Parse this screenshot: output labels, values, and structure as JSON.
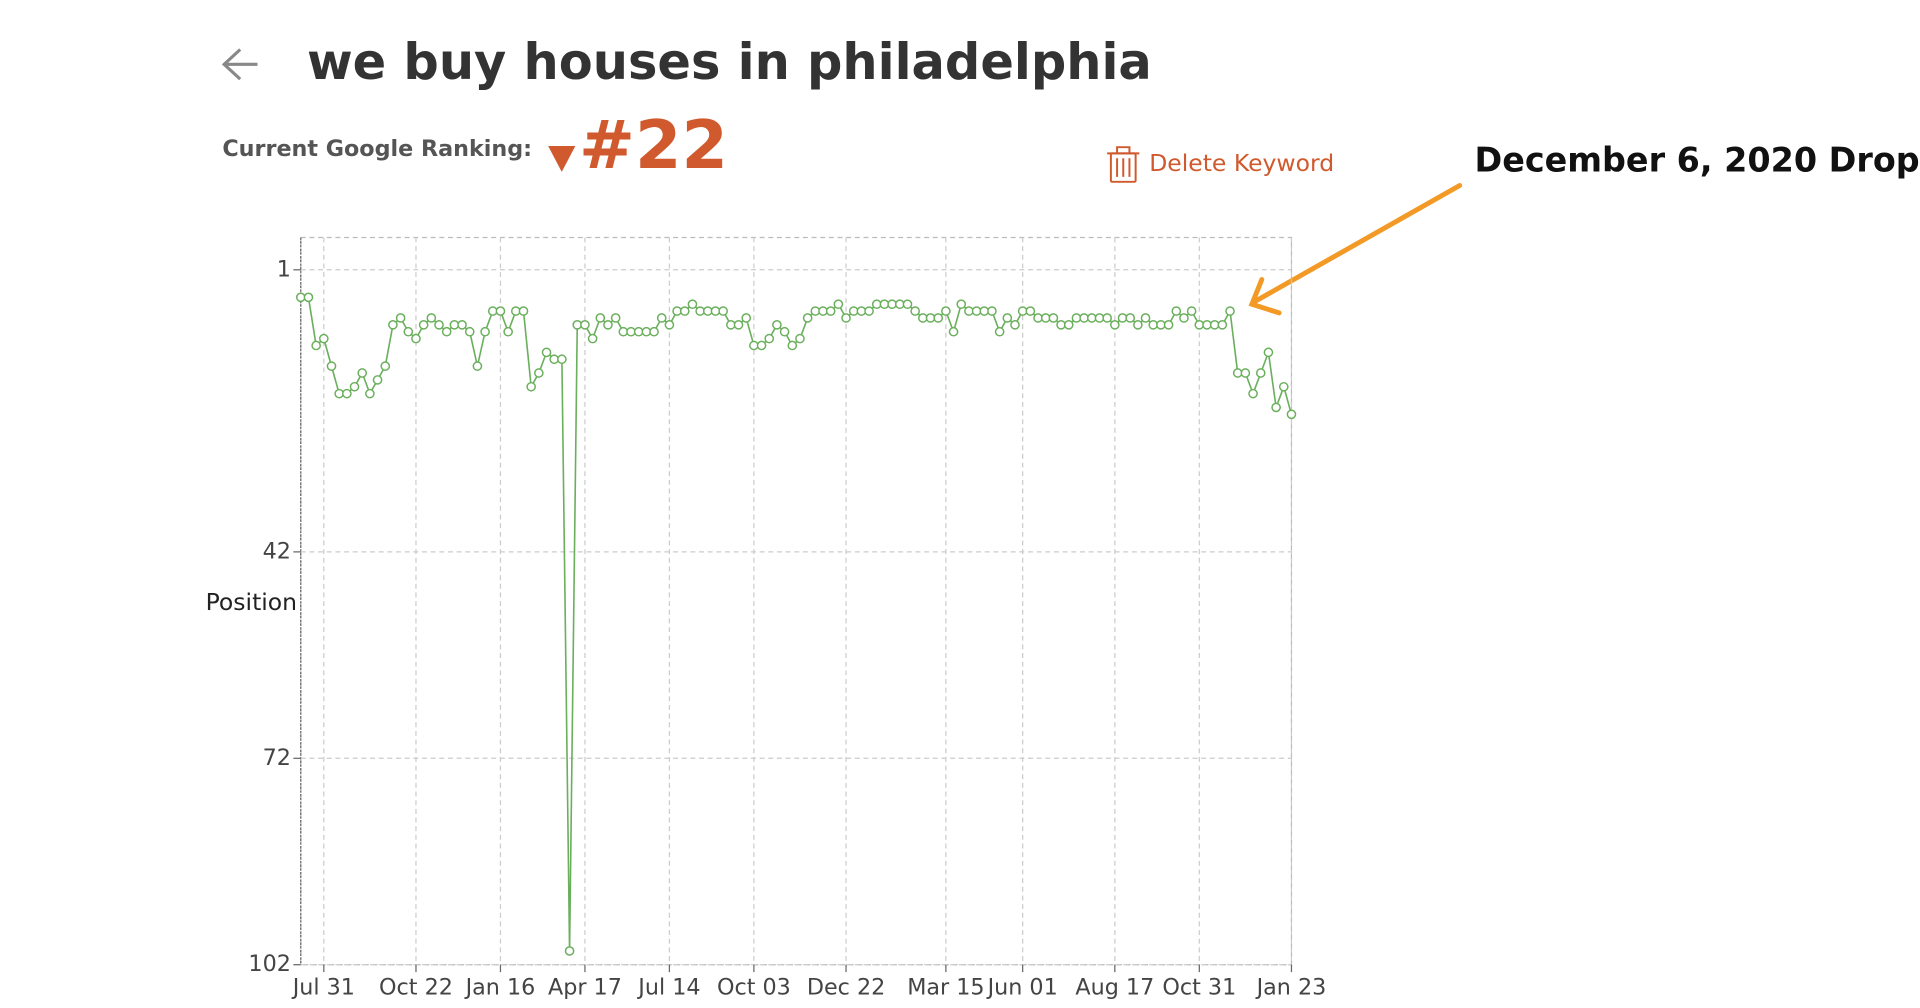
{
  "header": {
    "title": "we buy houses in philadelphia",
    "ranking_label": "Current Google Ranking:",
    "ranking_value": "#22",
    "delete_button": "Delete Keyword"
  },
  "annotation": "December 6, 2020 Drop",
  "chart_data": {
    "type": "line",
    "y_label": "Position",
    "categories": [
      null,
      null,
      null,
      "Jul 31",
      null,
      null,
      null,
      null,
      null,
      null,
      null,
      null,
      null,
      null,
      null,
      "Oct 22",
      null,
      null,
      null,
      null,
      null,
      null,
      null,
      null,
      null,
      null,
      "Jan 16",
      null,
      null,
      null,
      null,
      null,
      null,
      null,
      null,
      null,
      null,
      "Apr 17",
      null,
      null,
      null,
      null,
      null,
      null,
      null,
      null,
      null,
      null,
      "Jul 14",
      null,
      null,
      null,
      null,
      null,
      null,
      null,
      null,
      null,
      null,
      "Oct 03",
      null,
      null,
      null,
      null,
      null,
      null,
      null,
      null,
      null,
      null,
      null,
      "Dec 22",
      null,
      null,
      null,
      null,
      null,
      null,
      null,
      null,
      null,
      null,
      null,
      null,
      "Mar 15",
      null,
      null,
      null,
      null,
      null,
      null,
      null,
      null,
      null,
      "Jun 01",
      null,
      null,
      null,
      null,
      null,
      null,
      null,
      null,
      null,
      null,
      null,
      "Aug 17",
      null,
      null,
      null,
      null,
      null,
      null,
      null,
      null,
      null,
      null,
      "Oct 31",
      null,
      null,
      null,
      null,
      null,
      null,
      null,
      null,
      null,
      null,
      null,
      "Jan 23"
    ],
    "series": [
      {
        "name": "Position",
        "color": "#6aaf5c",
        "values": [
          5,
          5,
          12,
          11,
          15,
          19,
          19,
          18,
          16,
          19,
          17,
          15,
          9,
          8,
          10,
          11,
          9,
          8,
          9,
          10,
          9,
          9,
          10,
          15,
          10,
          7,
          7,
          10,
          7,
          7,
          18,
          16,
          13,
          14,
          14,
          100,
          9,
          9,
          11,
          8,
          9,
          8,
          10,
          10,
          10,
          10,
          10,
          8,
          9,
          7,
          7,
          6,
          7,
          7,
          7,
          7,
          9,
          9,
          8,
          12,
          12,
          11,
          9,
          10,
          12,
          11,
          8,
          7,
          7,
          7,
          6,
          8,
          7,
          7,
          7,
          6,
          6,
          6,
          6,
          6,
          7,
          8,
          8,
          8,
          7,
          10,
          6,
          7,
          7,
          7,
          7,
          10,
          8,
          9,
          7,
          7,
          8,
          8,
          8,
          9,
          9,
          8,
          8,
          8,
          8,
          8,
          9,
          8,
          8,
          9,
          8,
          9,
          9,
          9,
          7,
          8,
          7,
          9,
          9,
          9,
          9,
          7,
          16,
          16,
          19,
          16,
          13,
          21,
          18,
          22
        ]
      }
    ],
    "ylim": [
      102,
      -3.7
    ],
    "yticks": [
      1,
      42,
      72,
      102
    ],
    "grid": true
  }
}
